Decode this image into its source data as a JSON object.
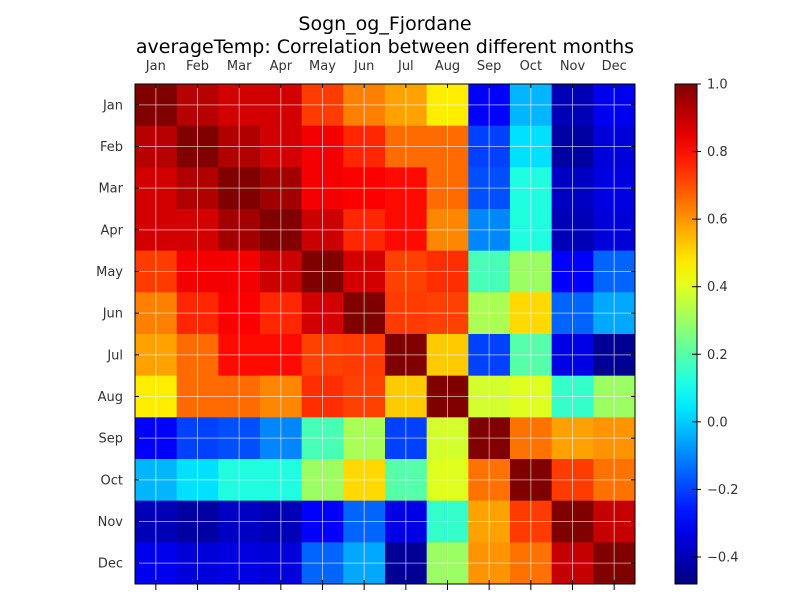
{
  "chart_data": {
    "type": "heatmap",
    "title": "Sogn_og_Fjordane",
    "subtitle": "averageTemp: Correlation between different months",
    "x_categories": [
      "Jan",
      "Feb",
      "Mar",
      "Apr",
      "May",
      "Jun",
      "Jul",
      "Aug",
      "Sep",
      "Oct",
      "Nov",
      "Dec"
    ],
    "y_categories": [
      "Jan",
      "Feb",
      "Mar",
      "Apr",
      "May",
      "Jun",
      "Jul",
      "Aug",
      "Sep",
      "Oct",
      "Nov",
      "Dec"
    ],
    "values": [
      [
        1.0,
        0.92,
        0.88,
        0.88,
        0.73,
        0.63,
        0.58,
        0.47,
        -0.3,
        -0.03,
        -0.4,
        -0.32
      ],
      [
        0.92,
        1.0,
        0.93,
        0.88,
        0.83,
        0.76,
        0.66,
        0.66,
        -0.2,
        0.03,
        -0.43,
        -0.35
      ],
      [
        0.88,
        0.93,
        1.0,
        0.95,
        0.83,
        0.82,
        0.8,
        0.66,
        -0.18,
        0.12,
        -0.38,
        -0.34
      ],
      [
        0.88,
        0.88,
        0.95,
        1.0,
        0.89,
        0.76,
        0.8,
        0.62,
        -0.1,
        0.12,
        -0.4,
        -0.35
      ],
      [
        0.73,
        0.83,
        0.83,
        0.89,
        1.0,
        0.88,
        0.72,
        0.75,
        0.18,
        0.3,
        -0.3,
        -0.15
      ],
      [
        0.63,
        0.76,
        0.82,
        0.76,
        0.88,
        1.0,
        0.73,
        0.72,
        0.32,
        0.5,
        -0.15,
        -0.05
      ],
      [
        0.58,
        0.66,
        0.8,
        0.8,
        0.72,
        0.73,
        1.0,
        0.52,
        -0.2,
        0.2,
        -0.33,
        -0.45
      ],
      [
        0.47,
        0.66,
        0.66,
        0.62,
        0.75,
        0.72,
        0.52,
        1.0,
        0.38,
        0.4,
        0.15,
        0.3
      ],
      [
        -0.3,
        -0.2,
        -0.18,
        -0.1,
        0.18,
        0.32,
        -0.2,
        0.38,
        1.0,
        0.65,
        0.58,
        0.6
      ],
      [
        -0.03,
        0.03,
        0.12,
        0.12,
        0.3,
        0.5,
        0.2,
        0.4,
        0.65,
        1.0,
        0.73,
        0.65
      ],
      [
        -0.4,
        -0.43,
        -0.38,
        -0.4,
        -0.3,
        -0.15,
        -0.33,
        0.15,
        0.58,
        0.73,
        1.0,
        0.9
      ],
      [
        -0.32,
        -0.35,
        -0.34,
        -0.35,
        -0.15,
        -0.05,
        -0.45,
        0.3,
        0.6,
        0.65,
        0.9,
        1.0
      ]
    ],
    "colorbar": {
      "min": -0.48,
      "max": 1.0,
      "ticks": [
        1.0,
        0.8,
        0.6,
        0.4,
        0.2,
        0.0,
        -0.2,
        -0.4
      ],
      "tick_labels": [
        "1.0",
        "0.8",
        "0.6",
        "0.4",
        "0.2",
        "0.0",
        "−0.2",
        "−0.4"
      ],
      "colormap": "jet"
    },
    "grid": true,
    "x_axis_position": "top"
  }
}
